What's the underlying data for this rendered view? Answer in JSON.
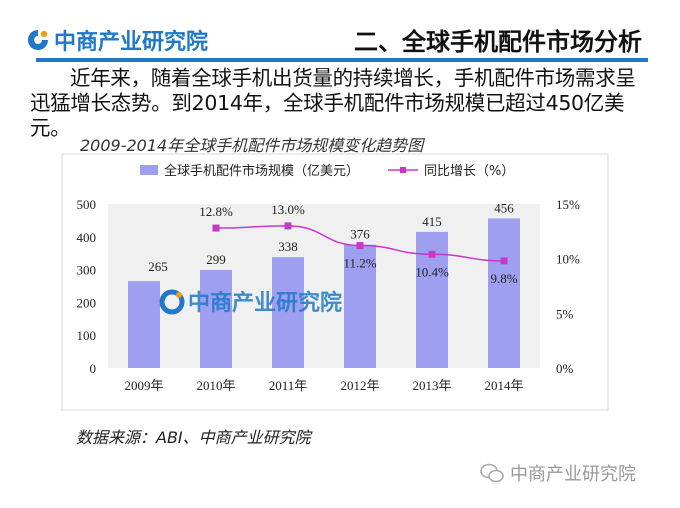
{
  "header": {
    "brand": "中商产业研究院",
    "section_title": "二、全球手机配件市场分析"
  },
  "intro_text": "近年来，随着全球手机出货量的持续增长，手机配件市场需求呈迅猛增长态势。到2014年，全球手机配件市场规模已超过450亿美元。",
  "chart_title": "2009-2014年全球手机配件市场规模变化趋势图",
  "source": "数据来源：ABI、中商产业研究院",
  "watermark": {
    "chart": "中商产业研究院",
    "footer": "中商产业研究院"
  },
  "colors": {
    "brand_blue": "#1f78c8",
    "bar": "#9f9ff2",
    "line": "#c838c8",
    "plot_bg": "#f0f0f0"
  },
  "chart_data": {
    "type": "bar",
    "categories": [
      "2009年",
      "2010年",
      "2011年",
      "2012年",
      "2013年",
      "2014年"
    ],
    "series": [
      {
        "name": "全球手机配件市场规模（亿美元）",
        "kind": "bar",
        "axis": "left",
        "values": [
          265,
          299,
          338,
          376,
          415,
          456
        ],
        "labels": [
          "265",
          "299",
          "338",
          "376",
          "415",
          "456"
        ]
      },
      {
        "name": "同比增长（%）",
        "kind": "line",
        "axis": "right",
        "values": [
          null,
          12.8,
          13.0,
          11.2,
          10.4,
          9.8
        ],
        "labels": [
          "",
          "12.8%",
          "13.0%",
          "11.2%",
          "10.4%",
          "9.8%"
        ]
      }
    ],
    "y_left": {
      "min": 0,
      "max": 500,
      "ticks": [
        "0",
        "100",
        "200",
        "300",
        "400",
        "500"
      ]
    },
    "y_right": {
      "min": 0,
      "max": 15,
      "ticks": [
        "0%",
        "5%",
        "10%",
        "15%"
      ]
    },
    "legend_position": "top"
  }
}
